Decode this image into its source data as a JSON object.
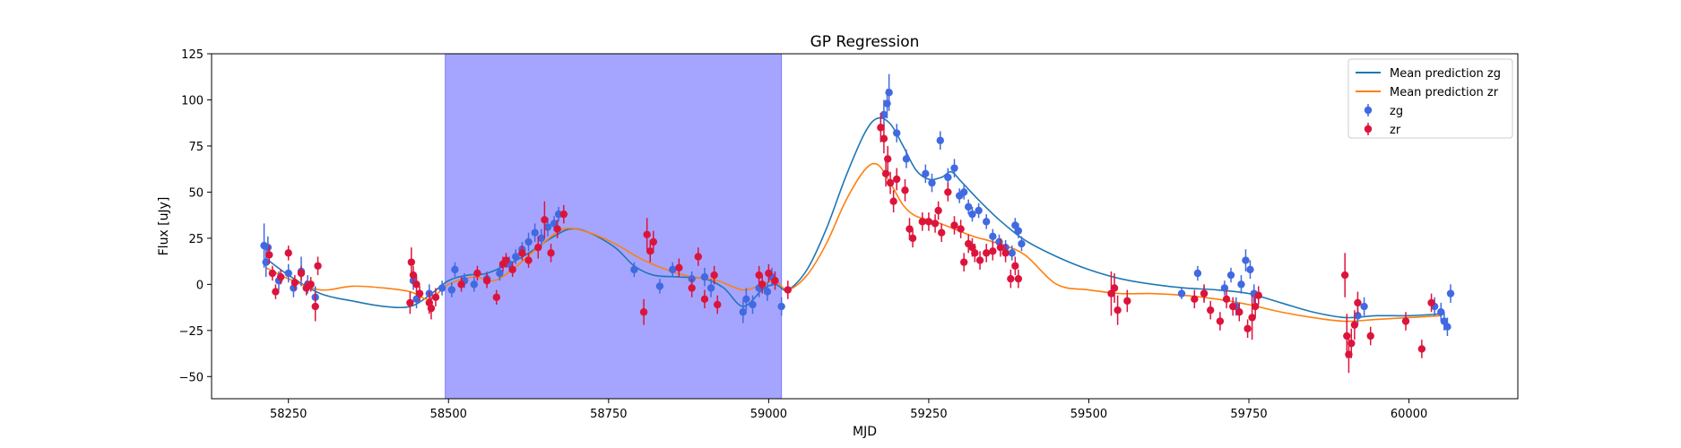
{
  "chart_data": {
    "type": "scatter",
    "title": "GP Regression",
    "xlabel": "MJD",
    "ylabel": "Flux [uJy]",
    "xlim": [
      58130,
      60170
    ],
    "ylim": [
      -62,
      125
    ],
    "xticks": [
      58250,
      58500,
      58750,
      59000,
      59250,
      59500,
      59750,
      60000
    ],
    "yticks": [
      -50,
      -25,
      0,
      25,
      50,
      75,
      100,
      125
    ],
    "grid": false,
    "legend_position": "top-right",
    "shaded_span": {
      "x0": 58495,
      "x1": 59020,
      "color": "#a5a5ff"
    },
    "series": [
      {
        "name": "Mean prediction zg",
        "kind": "line",
        "color": "#1f77b4",
        "x": [
          58215,
          58250,
          58300,
          58350,
          58400,
          58440,
          58470,
          58500,
          58530,
          58560,
          58600,
          58630,
          58660,
          58690,
          58720,
          58760,
          58790,
          58820,
          58860,
          58900,
          58930,
          58960,
          58990,
          59010,
          59030,
          59060,
          59090,
          59120,
          59150,
          59170,
          59190,
          59210,
          59230,
          59250,
          59270,
          59285,
          59300,
          59330,
          59360,
          59400,
          59450,
          59500,
          59550,
          59600,
          59650,
          59700,
          59750,
          59800,
          59850,
          59900,
          59950,
          60000,
          60050
        ],
        "y": [
          14,
          5,
          -5,
          -9,
          -12,
          -12,
          -6,
          2,
          5,
          6,
          12,
          18,
          25,
          30,
          28,
          20,
          10,
          5,
          4,
          3,
          -2,
          -12,
          -3,
          0,
          -3,
          8,
          30,
          58,
          82,
          90,
          87,
          75,
          62,
          57,
          58,
          61,
          56,
          45,
          35,
          24,
          15,
          8,
          3,
          0,
          -2,
          -3,
          -5,
          -10,
          -15,
          -18,
          -17,
          -17,
          -16
        ]
      },
      {
        "name": "Mean prediction zr",
        "kind": "line",
        "color": "#ff7f0e",
        "x": [
          58215,
          58250,
          58300,
          58350,
          58400,
          58440,
          58470,
          58500,
          58540,
          58570,
          58600,
          58640,
          58680,
          58720,
          58760,
          58800,
          58840,
          58880,
          58920,
          58960,
          58990,
          59010,
          59030,
          59060,
          59090,
          59120,
          59150,
          59170,
          59190,
          59210,
          59230,
          59260,
          59290,
          59320,
          59360,
          59400,
          59450,
          59500,
          59550,
          59600,
          59650,
          59700,
          59750,
          59800,
          59850,
          59900,
          59950,
          60000,
          60050
        ],
        "y": [
          9,
          3,
          -3,
          -1,
          -2,
          -4,
          -8,
          0,
          4,
          2,
          8,
          20,
          30,
          28,
          22,
          14,
          8,
          4,
          2,
          -3,
          0,
          2,
          -3,
          5,
          22,
          45,
          62,
          65,
          55,
          43,
          37,
          34,
          30,
          26,
          22,
          16,
          0,
          -3,
          -5,
          -5,
          -6,
          -8,
          -11,
          -15,
          -18,
          -20,
          -19,
          -18,
          -17
        ]
      },
      {
        "name": "zg",
        "kind": "errorbar",
        "color": "#4169e1",
        "x": [
          58212,
          58215,
          58218,
          58235,
          58250,
          58258,
          58270,
          58280,
          58292,
          58445,
          58450,
          58470,
          58490,
          58505,
          58510,
          58525,
          58540,
          58560,
          58580,
          58595,
          58605,
          58615,
          58625,
          58635,
          58645,
          58655,
          58665,
          58672,
          58790,
          58830,
          58850,
          58880,
          58900,
          58910,
          58960,
          58965,
          58975,
          58985,
          58998,
          59005,
          59020,
          59180,
          59185,
          59188,
          59200,
          59215,
          59245,
          59255,
          59268,
          59280,
          59290,
          59298,
          59305,
          59312,
          59318,
          59328,
          59340,
          59350,
          59360,
          59370,
          59380,
          59385,
          59390,
          59395,
          59645,
          59670,
          59680,
          59712,
          59722,
          59730,
          59738,
          59745,
          59752,
          59758,
          59920,
          59930,
          60040,
          60050,
          60055,
          60060,
          60065
        ],
        "y": [
          21,
          12,
          20,
          2,
          6,
          -2,
          7,
          0,
          -7,
          2,
          -8,
          -5,
          -2,
          -3,
          8,
          2,
          0,
          3,
          6,
          11,
          15,
          19,
          23,
          28,
          25,
          31,
          33,
          38,
          8,
          -1,
          8,
          3,
          4,
          -2,
          -15,
          -8,
          -11,
          -2,
          -4,
          4,
          -12,
          92,
          98,
          104,
          82,
          68,
          60,
          55,
          78,
          58,
          63,
          48,
          50,
          42,
          38,
          40,
          34,
          26,
          23,
          20,
          17,
          32,
          29,
          22,
          -5,
          6,
          -5,
          -2,
          5,
          -12,
          0,
          13,
          8,
          -5,
          -17,
          -12,
          -12,
          -15,
          -20,
          -23,
          -5
        ],
        "err": [
          12,
          8,
          6,
          5,
          5,
          5,
          8,
          5,
          6,
          5,
          5,
          5,
          4,
          4,
          4,
          4,
          4,
          4,
          4,
          4,
          4,
          4,
          5,
          5,
          5,
          5,
          4,
          4,
          4,
          4,
          4,
          4,
          5,
          5,
          6,
          6,
          5,
          5,
          5,
          5,
          5,
          8,
          8,
          10,
          5,
          5,
          5,
          5,
          5,
          5,
          5,
          4,
          4,
          4,
          4,
          4,
          4,
          4,
          4,
          4,
          4,
          4,
          4,
          4,
          3,
          4,
          4,
          4,
          4,
          5,
          5,
          6,
          5,
          5,
          5,
          5,
          5,
          5,
          5,
          5,
          5
        ]
      },
      {
        "name": "zr",
        "kind": "errorbar",
        "color": "#dc143c",
        "x": [
          58220,
          58225,
          58230,
          58238,
          58250,
          58260,
          58270,
          58278,
          58285,
          58292,
          58296,
          58440,
          58442,
          58445,
          58450,
          58455,
          58470,
          58473,
          58480,
          58520,
          58545,
          58560,
          58575,
          58585,
          58590,
          58600,
          58615,
          58625,
          58640,
          58650,
          58660,
          58670,
          58680,
          58805,
          58810,
          58815,
          58820,
          58860,
          58880,
          58890,
          58900,
          58915,
          58920,
          58985,
          58990,
          59000,
          59010,
          59030,
          59175,
          59180,
          59183,
          59186,
          59190,
          59195,
          59200,
          59213,
          59220,
          59225,
          59240,
          59250,
          59260,
          59265,
          59270,
          59280,
          59290,
          59300,
          59305,
          59312,
          59318,
          59322,
          59330,
          59340,
          59350,
          59362,
          59370,
          59378,
          59385,
          59390,
          59535,
          59540,
          59545,
          59560,
          59665,
          59680,
          59690,
          59705,
          59715,
          59725,
          59735,
          59748,
          59755,
          59760,
          59765,
          59900,
          59903,
          59906,
          59910,
          59915,
          59920,
          59940,
          59995,
          60020,
          60035
        ],
        "y": [
          16,
          6,
          -4,
          4,
          17,
          1,
          6,
          -2,
          0,
          -12,
          10,
          -10,
          12,
          5,
          0,
          -5,
          -10,
          -13,
          -7,
          0,
          6,
          2,
          -7,
          11,
          13,
          8,
          17,
          13,
          20,
          35,
          17,
          30,
          38,
          -15,
          27,
          18,
          23,
          9,
          -2,
          15,
          -8,
          5,
          -11,
          5,
          0,
          6,
          2,
          -3,
          85,
          79,
          60,
          68,
          55,
          45,
          57,
          51,
          30,
          25,
          34,
          34,
          33,
          40,
          28,
          50,
          32,
          30,
          12,
          22,
          20,
          17,
          13,
          17,
          18,
          20,
          17,
          3,
          10,
          3,
          -5,
          -2,
          -14,
          -9,
          -8,
          -5,
          -14,
          -20,
          -8,
          -12,
          -15,
          -24,
          -18,
          -12,
          -6,
          5,
          -28,
          -38,
          -32,
          -22,
          -10,
          -28,
          -20,
          -35,
          -10
        ],
        "err": [
          5,
          4,
          4,
          4,
          4,
          4,
          4,
          4,
          4,
          8,
          5,
          6,
          8,
          5,
          5,
          4,
          6,
          6,
          5,
          4,
          4,
          4,
          4,
          4,
          4,
          4,
          4,
          4,
          6,
          10,
          5,
          5,
          5,
          7,
          9,
          6,
          6,
          5,
          5,
          5,
          5,
          5,
          5,
          5,
          5,
          5,
          5,
          5,
          8,
          8,
          7,
          7,
          6,
          6,
          6,
          6,
          6,
          5,
          5,
          5,
          5,
          5,
          5,
          5,
          5,
          5,
          5,
          5,
          5,
          5,
          5,
          5,
          5,
          5,
          5,
          5,
          5,
          5,
          12,
          8,
          8,
          6,
          5,
          5,
          5,
          5,
          5,
          5,
          5,
          5,
          12,
          6,
          5,
          12,
          12,
          10,
          8,
          8,
          6,
          5,
          5,
          5,
          5
        ]
      }
    ]
  }
}
